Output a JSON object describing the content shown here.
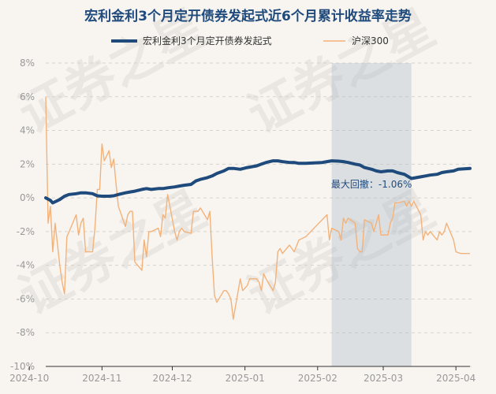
{
  "chart_data": {
    "type": "line",
    "title": "宏利金利3个月定开债券发起式近6个月累计收益率走势",
    "y_tick_labels": [
      "8%",
      "6%",
      "4%",
      "2%",
      "0%",
      "-2%",
      "-4%",
      "-6%",
      "-8%",
      "-10%"
    ],
    "ylim": [
      -10,
      8
    ],
    "x_tick_labels": [
      "2024-10",
      "2024-11",
      "2024-12",
      "2025-01",
      "2025-02",
      "2025-03",
      "2025-04"
    ],
    "x_range": [
      "2024-10-08",
      "2025-04-07"
    ],
    "grid": "horizontal-dashed",
    "legend_position": "top",
    "annotation": {
      "label": "最大回撤：-1.06%",
      "shaded_from": "2025-02-07",
      "shaded_to": "2025-03-13"
    },
    "series": [
      {
        "name": "宏利金利3个月定开债券发起式",
        "color": "#1f4a7c",
        "points": [
          [
            "2024-10-08",
            0.0
          ],
          [
            "2024-10-10",
            -0.15
          ],
          [
            "2024-10-11",
            -0.3
          ],
          [
            "2024-10-14",
            -0.1
          ],
          [
            "2024-10-16",
            0.1
          ],
          [
            "2024-10-18",
            0.2
          ],
          [
            "2024-10-21",
            0.25
          ],
          [
            "2024-10-23",
            0.3
          ],
          [
            "2024-10-25",
            0.3
          ],
          [
            "2024-10-28",
            0.25
          ],
          [
            "2024-10-30",
            0.12
          ],
          [
            "2024-11-01",
            0.1
          ],
          [
            "2024-11-04",
            0.1
          ],
          [
            "2024-11-06",
            0.12
          ],
          [
            "2024-11-08",
            0.2
          ],
          [
            "2024-11-11",
            0.3
          ],
          [
            "2024-11-13",
            0.35
          ],
          [
            "2024-11-15",
            0.4
          ],
          [
            "2024-11-18",
            0.5
          ],
          [
            "2024-11-20",
            0.55
          ],
          [
            "2024-11-22",
            0.5
          ],
          [
            "2024-11-25",
            0.55
          ],
          [
            "2024-11-27",
            0.55
          ],
          [
            "2024-11-29",
            0.6
          ],
          [
            "2024-12-02",
            0.65
          ],
          [
            "2024-12-04",
            0.7
          ],
          [
            "2024-12-06",
            0.75
          ],
          [
            "2024-12-09",
            0.8
          ],
          [
            "2024-12-11",
            1.0
          ],
          [
            "2024-12-13",
            1.1
          ],
          [
            "2024-12-16",
            1.2
          ],
          [
            "2024-12-18",
            1.3
          ],
          [
            "2024-12-20",
            1.45
          ],
          [
            "2024-12-23",
            1.6
          ],
          [
            "2024-12-25",
            1.75
          ],
          [
            "2024-12-27",
            1.75
          ],
          [
            "2024-12-30",
            1.7
          ],
          [
            "2025-01-02",
            1.8
          ],
          [
            "2025-01-06",
            1.9
          ],
          [
            "2025-01-08",
            2.0
          ],
          [
            "2025-01-10",
            2.1
          ],
          [
            "2025-01-13",
            2.2
          ],
          [
            "2025-01-15",
            2.2
          ],
          [
            "2025-01-17",
            2.15
          ],
          [
            "2025-01-20",
            2.1
          ],
          [
            "2025-01-22",
            2.1
          ],
          [
            "2025-01-24",
            2.05
          ],
          [
            "2025-01-27",
            2.05
          ],
          [
            "2025-02-03",
            2.1
          ],
          [
            "2025-02-05",
            2.15
          ],
          [
            "2025-02-07",
            2.2
          ],
          [
            "2025-02-10",
            2.18
          ],
          [
            "2025-02-12",
            2.15
          ],
          [
            "2025-02-14",
            2.1
          ],
          [
            "2025-02-17",
            2.0
          ],
          [
            "2025-02-19",
            1.95
          ],
          [
            "2025-02-21",
            1.8
          ],
          [
            "2025-02-24",
            1.7
          ],
          [
            "2025-02-26",
            1.6
          ],
          [
            "2025-02-28",
            1.55
          ],
          [
            "2025-03-03",
            1.6
          ],
          [
            "2025-03-05",
            1.6
          ],
          [
            "2025-03-07",
            1.5
          ],
          [
            "2025-03-10",
            1.4
          ],
          [
            "2025-03-13",
            1.15
          ],
          [
            "2025-03-17",
            1.25
          ],
          [
            "2025-03-19",
            1.3
          ],
          [
            "2025-03-21",
            1.35
          ],
          [
            "2025-03-24",
            1.4
          ],
          [
            "2025-03-26",
            1.5
          ],
          [
            "2025-03-28",
            1.55
          ],
          [
            "2025-03-31",
            1.6
          ],
          [
            "2025-04-02",
            1.7
          ],
          [
            "2025-04-07",
            1.75
          ]
        ]
      },
      {
        "name": "沪深300",
        "color": "#f2b27a",
        "points": [
          [
            "2024-10-08",
            6.0
          ],
          [
            "2024-10-09",
            -1.5
          ],
          [
            "2024-10-10",
            -0.5
          ],
          [
            "2024-10-11",
            -3.2
          ],
          [
            "2024-10-12",
            -1.5
          ],
          [
            "2024-10-14",
            -4.0
          ],
          [
            "2024-10-15",
            -5.0
          ],
          [
            "2024-10-16",
            -5.7
          ],
          [
            "2024-10-17",
            -2.3
          ],
          [
            "2024-10-18",
            -2.0
          ],
          [
            "2024-10-21",
            -1.0
          ],
          [
            "2024-10-22",
            -2.2
          ],
          [
            "2024-10-23",
            -1.5
          ],
          [
            "2024-10-24",
            -1.2
          ],
          [
            "2024-10-25",
            -3.2
          ],
          [
            "2024-10-28",
            -3.2
          ],
          [
            "2024-10-29",
            -1.8
          ],
          [
            "2024-10-30",
            0.5
          ],
          [
            "2024-10-31",
            0.5
          ],
          [
            "2024-11-01",
            3.2
          ],
          [
            "2024-11-02",
            2.2
          ],
          [
            "2024-11-04",
            2.8
          ],
          [
            "2024-11-05",
            1.8
          ],
          [
            "2024-11-06",
            2.3
          ],
          [
            "2024-11-07",
            0.8
          ],
          [
            "2024-11-08",
            -0.5
          ],
          [
            "2024-11-11",
            -1.7
          ],
          [
            "2024-11-12",
            -1.0
          ],
          [
            "2024-11-13",
            -0.8
          ],
          [
            "2024-11-14",
            -0.8
          ],
          [
            "2024-11-15",
            -3.8
          ],
          [
            "2024-11-18",
            -4.3
          ],
          [
            "2024-11-19",
            -2.5
          ],
          [
            "2024-11-20",
            -3.5
          ],
          [
            "2024-11-21",
            -2.0
          ],
          [
            "2024-11-22",
            -2.0
          ],
          [
            "2024-11-25",
            -1.8
          ],
          [
            "2024-11-26",
            -2.3
          ],
          [
            "2024-11-27",
            -1.0
          ],
          [
            "2024-11-28",
            -1.2
          ],
          [
            "2024-11-29",
            0.2
          ],
          [
            "2024-12-02",
            -2.0
          ],
          [
            "2024-12-03",
            -2.5
          ],
          [
            "2024-12-04",
            -2.0
          ],
          [
            "2024-12-05",
            -1.8
          ],
          [
            "2024-12-06",
            -2.0
          ],
          [
            "2024-12-09",
            -2.1
          ],
          [
            "2024-12-10",
            -0.8
          ],
          [
            "2024-12-11",
            -0.8
          ],
          [
            "2024-12-12",
            -0.8
          ],
          [
            "2024-12-13",
            -0.6
          ],
          [
            "2024-12-16",
            -1.3
          ],
          [
            "2024-12-17",
            -0.8
          ],
          [
            "2024-12-18",
            -3.5
          ],
          [
            "2024-12-19",
            -5.8
          ],
          [
            "2024-12-20",
            -6.2
          ],
          [
            "2024-12-23",
            -5.5
          ],
          [
            "2024-12-24",
            -5.5
          ],
          [
            "2024-12-25",
            -5.7
          ],
          [
            "2024-12-26",
            -6.0
          ],
          [
            "2024-12-27",
            -7.2
          ],
          [
            "2024-12-30",
            -4.8
          ],
          [
            "2024-12-31",
            -5.5
          ],
          [
            "2025-01-02",
            -5.2
          ],
          [
            "2025-01-03",
            -4.8
          ],
          [
            "2025-01-06",
            -4.8
          ],
          [
            "2025-01-07",
            -5.0
          ],
          [
            "2025-01-08",
            -5.5
          ],
          [
            "2025-01-09",
            -4.5
          ],
          [
            "2025-01-10",
            -4.8
          ],
          [
            "2025-01-13",
            -5.5
          ],
          [
            "2025-01-14",
            -5.0
          ],
          [
            "2025-01-15",
            -3.2
          ],
          [
            "2025-01-16",
            -3.0
          ],
          [
            "2025-01-17",
            -3.3
          ],
          [
            "2025-01-20",
            -2.8
          ],
          [
            "2025-01-22",
            -3.2
          ],
          [
            "2025-01-24",
            -2.5
          ],
          [
            "2025-01-27",
            -2.3
          ],
          [
            "2025-02-05",
            -1.0
          ],
          [
            "2025-02-06",
            -2.5
          ],
          [
            "2025-02-07",
            -1.8
          ],
          [
            "2025-02-10",
            -2.0
          ],
          [
            "2025-02-11",
            -2.5
          ],
          [
            "2025-02-12",
            -1.2
          ],
          [
            "2025-02-13",
            -1.5
          ],
          [
            "2025-02-14",
            -1.2
          ],
          [
            "2025-02-17",
            -1.5
          ],
          [
            "2025-02-18",
            -3.0
          ],
          [
            "2025-02-19",
            -3.2
          ],
          [
            "2025-02-20",
            -3.2
          ],
          [
            "2025-02-21",
            -1.3
          ],
          [
            "2025-02-24",
            -1.5
          ],
          [
            "2025-02-25",
            -2.0
          ],
          [
            "2025-02-26",
            -1.5
          ],
          [
            "2025-02-27",
            -1.0
          ],
          [
            "2025-02-28",
            -2.2
          ],
          [
            "2025-03-03",
            -2.2
          ],
          [
            "2025-03-04",
            -1.5
          ],
          [
            "2025-03-05",
            -1.2
          ],
          [
            "2025-03-06",
            -0.3
          ],
          [
            "2025-03-07",
            -0.3
          ],
          [
            "2025-03-10",
            -0.2
          ],
          [
            "2025-03-11",
            -0.5
          ],
          [
            "2025-03-12",
            -0.2
          ],
          [
            "2025-03-13",
            -0.5
          ],
          [
            "2025-03-14",
            -0.2
          ],
          [
            "2025-03-17",
            -1.0
          ],
          [
            "2025-03-18",
            -2.5
          ],
          [
            "2025-03-19",
            -2.0
          ],
          [
            "2025-03-20",
            -2.2
          ],
          [
            "2025-03-21",
            -2.0
          ],
          [
            "2025-03-24",
            -2.5
          ],
          [
            "2025-03-25",
            -2.0
          ],
          [
            "2025-03-26",
            -2.2
          ],
          [
            "2025-03-27",
            -2.0
          ],
          [
            "2025-03-28",
            -1.5
          ],
          [
            "2025-03-31",
            -2.5
          ],
          [
            "2025-04-01",
            -3.2
          ],
          [
            "2025-04-03",
            -3.3
          ],
          [
            "2025-04-07",
            -3.3
          ]
        ]
      }
    ]
  },
  "watermark": "证券之星"
}
